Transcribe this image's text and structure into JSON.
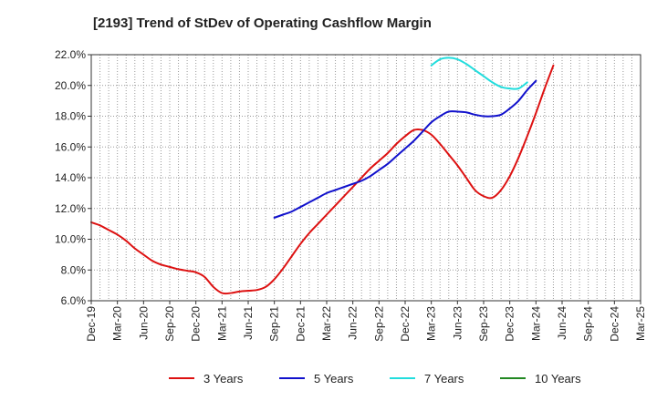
{
  "chart_data": {
    "type": "line",
    "title": "[2193]  Trend of StDev of Operating Cashflow Margin",
    "xlabel": "",
    "ylabel": "",
    "ylim": [
      6.0,
      22.0
    ],
    "y_ticks": [
      "6.0%",
      "8.0%",
      "10.0%",
      "12.0%",
      "14.0%",
      "16.0%",
      "18.0%",
      "20.0%",
      "22.0%"
    ],
    "x_ticks": [
      "Dec-19",
      "Mar-20",
      "Jun-20",
      "Sep-20",
      "Dec-20",
      "Mar-21",
      "Jun-21",
      "Sep-21",
      "Dec-21",
      "Mar-22",
      "Jun-22",
      "Sep-22",
      "Dec-22",
      "Mar-23",
      "Jun-23",
      "Sep-23",
      "Dec-23",
      "Mar-24",
      "Jun-24",
      "Sep-24",
      "Dec-24",
      "Mar-25"
    ],
    "grid": true,
    "legend_position": "bottom",
    "series": [
      {
        "name": "3 Years",
        "color": "#dd1111",
        "start_month": 0,
        "values": [
          11.1,
          10.9,
          10.6,
          10.3,
          9.9,
          9.4,
          9.0,
          8.6,
          8.35,
          8.2,
          8.05,
          7.95,
          7.85,
          7.55,
          6.9,
          6.5,
          6.5,
          6.6,
          6.65,
          6.7,
          6.9,
          7.4,
          8.1,
          8.9,
          9.7,
          10.4,
          11.0,
          11.6,
          12.2,
          12.8,
          13.4,
          14.0,
          14.6,
          15.1,
          15.6,
          16.2,
          16.7,
          17.1,
          17.1,
          16.8,
          16.2,
          15.5,
          14.8,
          14.0,
          13.2,
          12.8,
          12.7,
          13.2,
          14.1,
          15.3,
          16.7,
          18.2,
          19.8,
          21.3
        ]
      },
      {
        "name": "5 Years",
        "color": "#1111cc",
        "start_month": 21,
        "values": [
          11.4,
          11.6,
          11.8,
          12.1,
          12.4,
          12.7,
          13.0,
          13.2,
          13.4,
          13.6,
          13.8,
          14.1,
          14.5,
          14.9,
          15.4,
          15.9,
          16.4,
          17.0,
          17.6,
          18.0,
          18.3,
          18.3,
          18.25,
          18.1,
          18.0,
          18.0,
          18.1,
          18.5,
          19.0,
          19.7,
          20.3
        ]
      },
      {
        "name": "7 Years",
        "color": "#22dddd",
        "start_month": 39,
        "values": [
          21.3,
          21.7,
          21.8,
          21.7,
          21.4,
          21.0,
          20.6,
          20.2,
          19.9,
          19.8,
          19.8,
          20.2
        ]
      },
      {
        "name": "10 Years",
        "color": "#228822",
        "start_month": 0,
        "values": []
      }
    ]
  }
}
